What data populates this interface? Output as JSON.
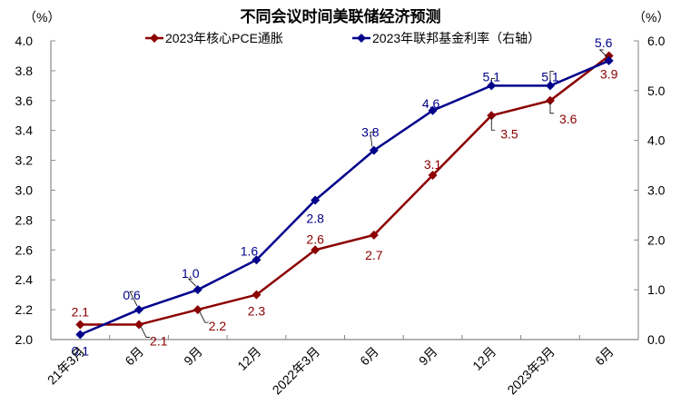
{
  "chart_data": {
    "type": "line",
    "title": "不同会议时间美联储经济预测",
    "left_axis": {
      "unit_label": "（%）",
      "ylim": [
        2.0,
        4.0
      ],
      "ticks": [
        "2.0",
        "2.2",
        "2.4",
        "2.6",
        "2.8",
        "3.0",
        "3.2",
        "3.4",
        "3.6",
        "3.8",
        "4.0"
      ]
    },
    "right_axis": {
      "unit_label": "（%）",
      "ylim": [
        0.0,
        6.0
      ],
      "ticks": [
        "0.0",
        "1.0",
        "2.0",
        "3.0",
        "4.0",
        "5.0",
        "6.0"
      ]
    },
    "categories": [
      "21年3月",
      "6月",
      "9月",
      "12月",
      "2022年3月",
      "6月",
      "9月",
      "12月",
      "2023年3月",
      "6月"
    ],
    "series": [
      {
        "name": "2023年核心PCE通胀",
        "axis": "left",
        "color": "#8B0000",
        "values": [
          2.1,
          2.1,
          2.2,
          2.3,
          2.6,
          2.7,
          3.1,
          3.5,
          3.6,
          3.9
        ],
        "labels": [
          "2.1",
          "2.1",
          "2.2",
          "2.3",
          "2.6",
          "2.7",
          "3.1",
          "3.5",
          "3.6",
          "3.9"
        ]
      },
      {
        "name": "2023年联邦基金利率（右轴）",
        "axis": "right",
        "color": "#00008B",
        "values": [
          0.1,
          0.6,
          1.0,
          1.6,
          2.8,
          3.8,
          4.6,
          5.1,
          5.1,
          5.6
        ],
        "labels": [
          "0.1",
          "0.6",
          "1.0",
          "1.6",
          "2.8",
          "3.8",
          "4.6",
          "5.1",
          "5.1",
          "5.6"
        ]
      }
    ],
    "legend_position": "top",
    "grid": false
  }
}
